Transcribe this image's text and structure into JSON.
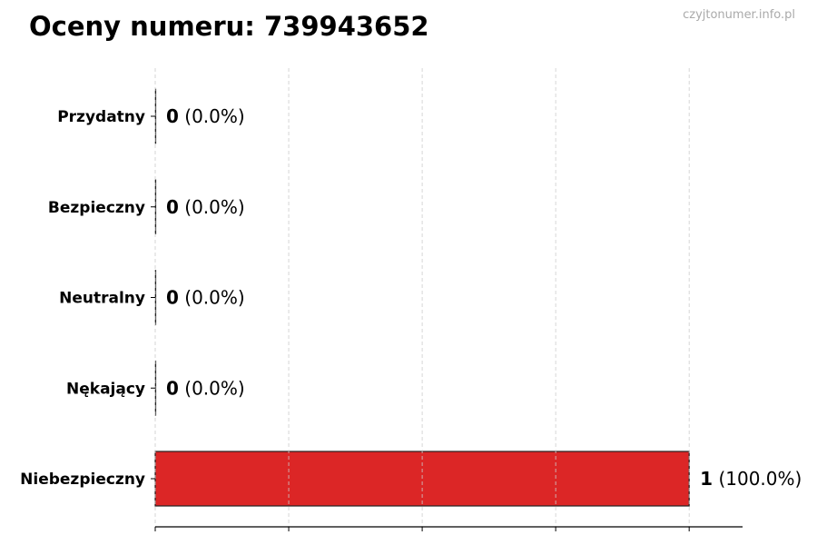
{
  "chart_data": {
    "type": "bar",
    "orientation": "horizontal",
    "title": "Oceny numeru: 739943652",
    "watermark": "czyjtonumer.info.pl",
    "categories": [
      "Przydatny",
      "Bezpieczny",
      "Neutralny",
      "Nękający",
      "Niebezpieczny"
    ],
    "values": [
      0,
      0,
      0,
      0,
      1
    ],
    "value_labels": [
      {
        "count": "0",
        "pct": "(0.0%)"
      },
      {
        "count": "0",
        "pct": "(0.0%)"
      },
      {
        "count": "0",
        "pct": "(0.0%)"
      },
      {
        "count": "0",
        "pct": "(0.0%)"
      },
      {
        "count": "1",
        "pct": "(100.0%)"
      }
    ],
    "bar_colors": [
      "#2ca02c",
      "#1f77b4",
      "#7f7f7f",
      "#ff7f0e",
      "#dc2626"
    ],
    "xlim": [
      0,
      1.1
    ],
    "xticks": [
      0,
      0.25,
      0.5,
      0.75,
      1.0
    ],
    "grid": "x-dashed",
    "xlabel": "",
    "ylabel": ""
  }
}
